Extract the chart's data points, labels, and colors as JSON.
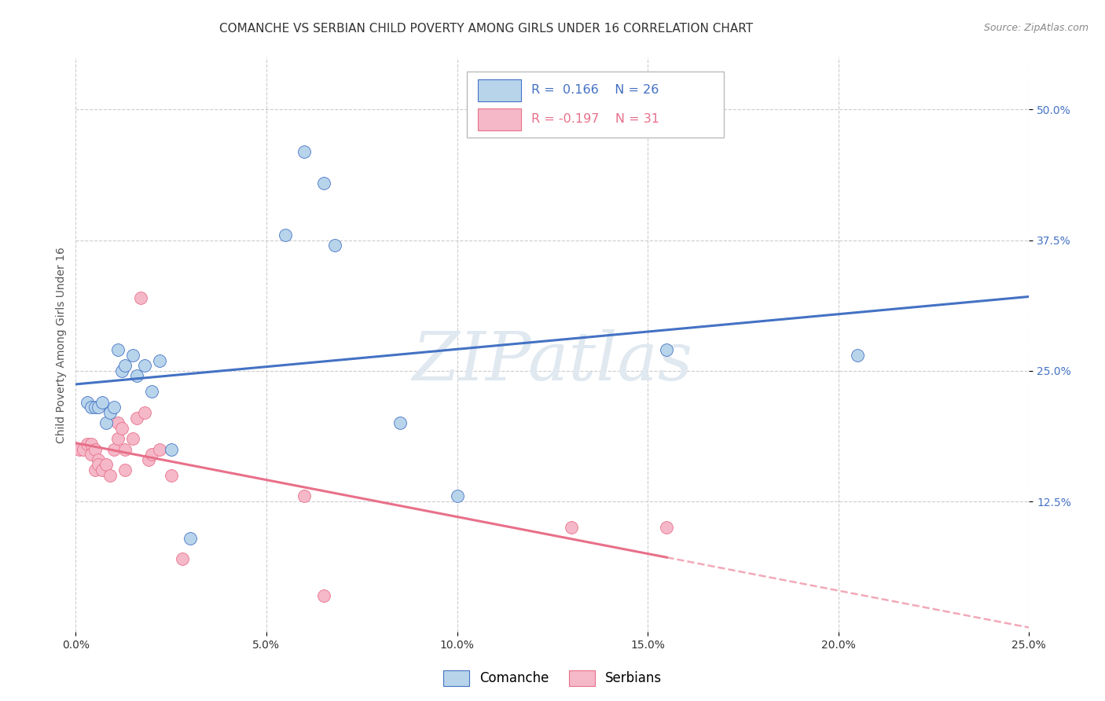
{
  "title": "COMANCHE VS SERBIAN CHILD POVERTY AMONG GIRLS UNDER 16 CORRELATION CHART",
  "source": "Source: ZipAtlas.com",
  "ylabel": "Child Poverty Among Girls Under 16",
  "xlim": [
    0.0,
    0.25
  ],
  "ylim": [
    0.0,
    0.55
  ],
  "xtick_labels": [
    "0.0%",
    "5.0%",
    "10.0%",
    "15.0%",
    "20.0%",
    "25.0%"
  ],
  "xtick_vals": [
    0.0,
    0.05,
    0.1,
    0.15,
    0.2,
    0.25
  ],
  "ytick_labels": [
    "12.5%",
    "25.0%",
    "37.5%",
    "50.0%"
  ],
  "ytick_vals": [
    0.125,
    0.25,
    0.375,
    0.5
  ],
  "legend_entries": [
    "Comanche",
    "Serbians"
  ],
  "r_comanche": 0.166,
  "n_comanche": 26,
  "r_serbian": -0.197,
  "n_serbian": 31,
  "comanche_color": "#b8d4eb",
  "serbian_color": "#f5b8c8",
  "comanche_line_color": "#4472c4",
  "serbian_line_color": "#e8708a",
  "background_color": "#ffffff",
  "watermark": "ZIPatlas",
  "comanche_x": [
    0.003,
    0.004,
    0.005,
    0.006,
    0.007,
    0.008,
    0.009,
    0.01,
    0.011,
    0.012,
    0.013,
    0.015,
    0.016,
    0.018,
    0.02,
    0.022,
    0.025,
    0.03,
    0.055,
    0.06,
    0.065,
    0.068,
    0.085,
    0.1,
    0.155,
    0.205
  ],
  "comanche_y": [
    0.22,
    0.215,
    0.215,
    0.215,
    0.22,
    0.2,
    0.21,
    0.215,
    0.27,
    0.25,
    0.255,
    0.265,
    0.245,
    0.255,
    0.23,
    0.26,
    0.175,
    0.09,
    0.38,
    0.46,
    0.43,
    0.37,
    0.2,
    0.13,
    0.27,
    0.265
  ],
  "serbian_x": [
    0.001,
    0.002,
    0.003,
    0.004,
    0.004,
    0.005,
    0.005,
    0.006,
    0.006,
    0.007,
    0.008,
    0.009,
    0.01,
    0.011,
    0.011,
    0.012,
    0.013,
    0.013,
    0.015,
    0.016,
    0.017,
    0.018,
    0.019,
    0.02,
    0.022,
    0.025,
    0.028,
    0.06,
    0.065,
    0.13,
    0.155
  ],
  "serbian_y": [
    0.175,
    0.175,
    0.18,
    0.18,
    0.17,
    0.175,
    0.155,
    0.165,
    0.16,
    0.155,
    0.16,
    0.15,
    0.175,
    0.2,
    0.185,
    0.195,
    0.175,
    0.155,
    0.185,
    0.205,
    0.32,
    0.21,
    0.165,
    0.17,
    0.175,
    0.15,
    0.07,
    0.13,
    0.035,
    0.1,
    0.1
  ],
  "title_fontsize": 11,
  "axis_label_fontsize": 10,
  "tick_fontsize": 10,
  "legend_fontsize": 11,
  "blue_tick_color": "#4472c4",
  "dark_text_color": "#333333",
  "source_color": "#888888"
}
